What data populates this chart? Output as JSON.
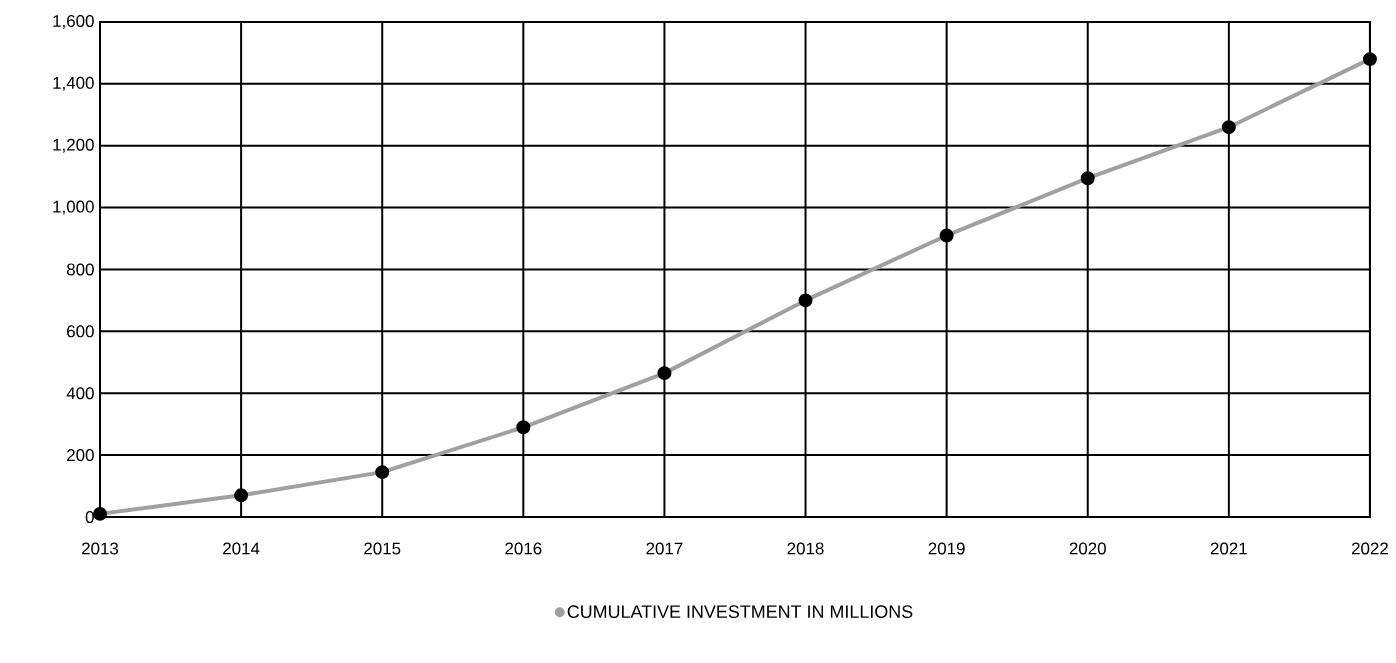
{
  "chart_data": {
    "type": "line",
    "categories": [
      "2013",
      "2014",
      "2015",
      "2016",
      "2017",
      "2018",
      "2019",
      "2020",
      "2021",
      "2022"
    ],
    "series": [
      {
        "name": "CUMULATIVE INVESTMENT IN MILLIONS",
        "color": "#a0a0a0",
        "values": [
          10,
          70,
          145,
          290,
          465,
          700,
          910,
          1095,
          1260,
          1480
        ]
      }
    ],
    "ylim": [
      0,
      1600
    ],
    "yticks": [
      {
        "value": 0,
        "label": "0"
      },
      {
        "value": 200,
        "label": "200"
      },
      {
        "value": 400,
        "label": "400"
      },
      {
        "value": 600,
        "label": "600"
      },
      {
        "value": 800,
        "label": "800"
      },
      {
        "value": 1000,
        "label": "1,000"
      },
      {
        "value": 1200,
        "label": "1,200"
      },
      {
        "value": 1400,
        "label": "1,400"
      },
      {
        "value": 1600,
        "label": "1,600"
      }
    ],
    "grid": true,
    "legend": "bottom",
    "marker": "circle",
    "line_style": "solid"
  }
}
